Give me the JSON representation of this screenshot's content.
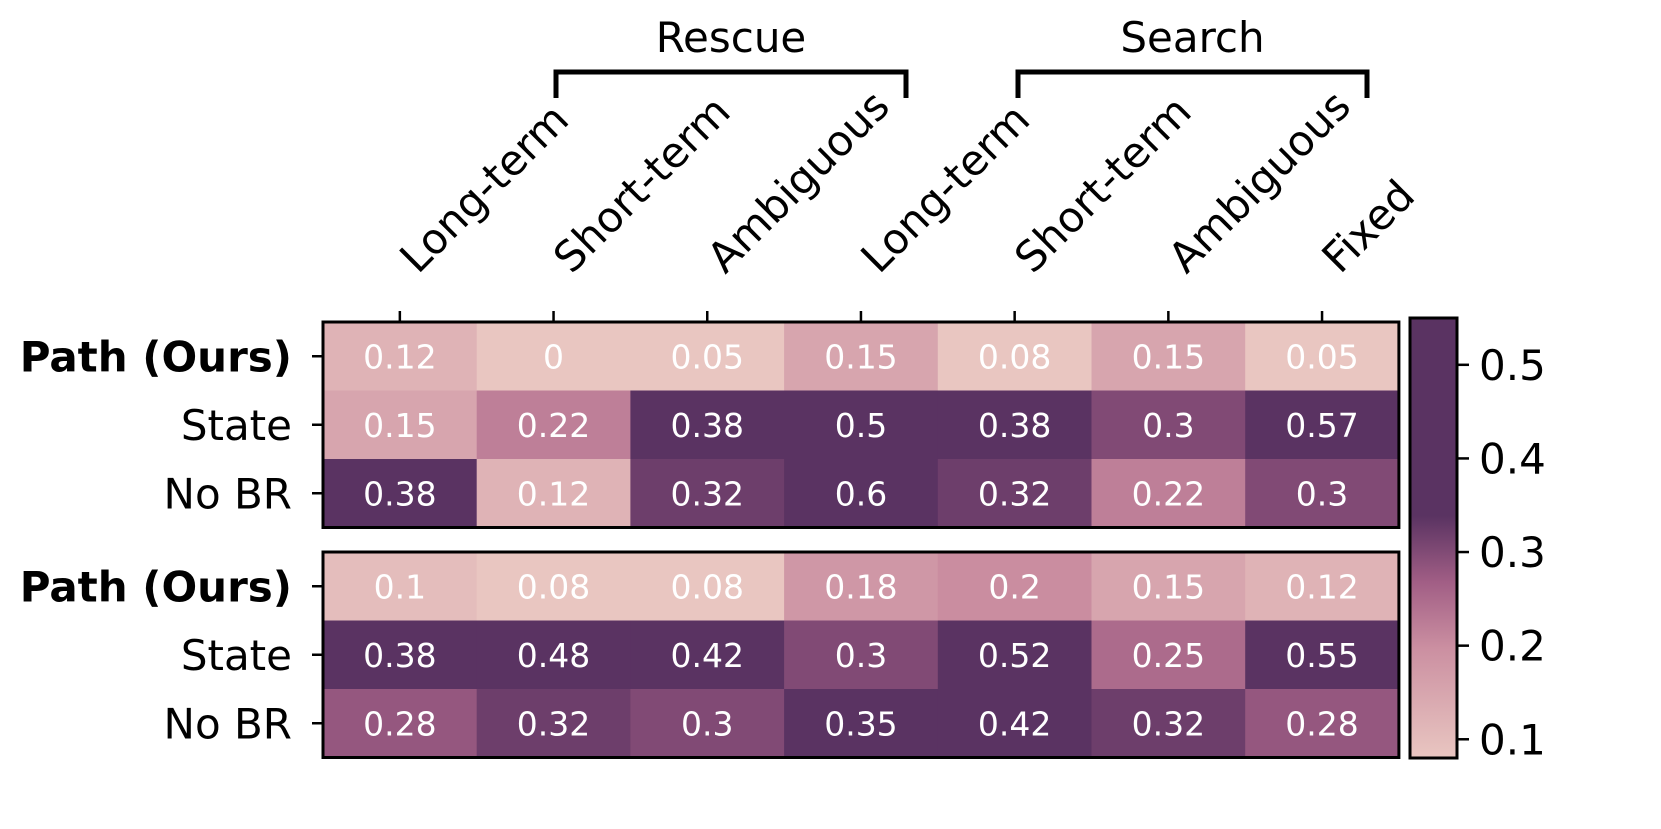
{
  "chart_data": {
    "type": "heatmap",
    "groups": [
      {
        "name": "Rescue",
        "column_range": [
          1,
          3
        ]
      },
      {
        "name": "Search",
        "column_range": [
          4,
          6
        ]
      }
    ],
    "columns": [
      "Long-term",
      "Short-term",
      "Ambiguous",
      "Long-term",
      "Short-term",
      "Ambiguous",
      "Fixed"
    ],
    "panels": [
      {
        "rows": [
          "Path (Ours)",
          "State",
          "No BR"
        ],
        "values": [
          [
            0.12,
            0.0,
            0.05,
            0.15,
            0.08,
            0.15,
            0.05
          ],
          [
            0.15,
            0.22,
            0.38,
            0.5,
            0.38,
            0.3,
            0.57
          ],
          [
            0.38,
            0.12,
            0.32,
            0.6,
            0.32,
            0.22,
            0.3
          ]
        ]
      },
      {
        "rows": [
          "Path (Ours)",
          "State",
          "No BR"
        ],
        "values": [
          [
            0.1,
            0.08,
            0.08,
            0.18,
            0.2,
            0.15,
            0.12
          ],
          [
            0.38,
            0.48,
            0.42,
            0.3,
            0.52,
            0.25,
            0.55
          ],
          [
            0.28,
            0.32,
            0.3,
            0.35,
            0.42,
            0.32,
            0.28
          ]
        ]
      }
    ],
    "bold_rows": [
      "Path (Ours)"
    ],
    "colorbar": {
      "ticks": [
        0.1,
        0.2,
        0.3,
        0.4,
        0.5
      ],
      "range": [
        0.08,
        0.55
      ],
      "colors": [
        "#e9c6c1",
        "#5a3362"
      ]
    },
    "colormap_stops": [
      {
        "v": 0.0,
        "c": "#e9c6c1"
      },
      {
        "v": 0.25,
        "c": "#cb8fa1"
      },
      {
        "v": 0.4,
        "c": "#a15e85"
      },
      {
        "v": 0.55,
        "c": "#5a3362"
      }
    ]
  }
}
